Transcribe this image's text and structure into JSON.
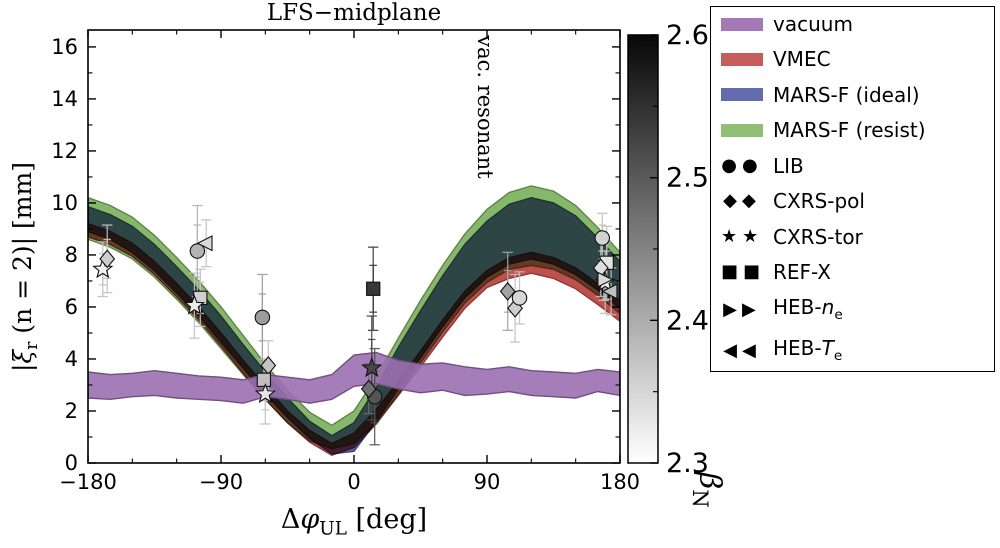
{
  "figure": {
    "title": "LFS−midplane",
    "annotation": "vac. resonant",
    "background": "#ffffff"
  },
  "axes": {
    "xlabel": {
      "p1": "Δ",
      "phi": "φ",
      "sub": "UL",
      "p2": " [deg]"
    },
    "ylabel": {
      "p1": "|",
      "xi": "ξ",
      "sub": "r",
      "p2": " (n = 2)| [mm]"
    },
    "xticks": [
      "−180",
      "−90",
      "0",
      "90",
      "180"
    ],
    "xtick_values": [
      -180,
      -90,
      0,
      90,
      180
    ],
    "yticks": [
      "0",
      "2",
      "4",
      "6",
      "8",
      "10",
      "12",
      "14",
      "16"
    ],
    "ytick_values": [
      0,
      2,
      4,
      6,
      8,
      10,
      12,
      14,
      16
    ]
  },
  "colorbar": {
    "label_main": "β",
    "label_sub": "N",
    "ticks": [
      "2.3",
      "2.4",
      "2.5",
      "2.6"
    ],
    "tick_values": [
      2.3,
      2.4,
      2.5,
      2.6
    ],
    "minor_ticks": [
      2.35,
      2.45,
      2.55
    ],
    "min": 2.3,
    "max": 2.6,
    "top_color": "#070707",
    "bottom_color": "#ffffff"
  },
  "legend": {
    "marker_glyphs": {
      "circle": "●",
      "diamond": "◆",
      "star": "★",
      "square": "■",
      "tri-right": "▶",
      "tri-left": "◀"
    },
    "items": [
      {
        "swatch": "#9b6fb0",
        "pre": "vacuum"
      },
      {
        "swatch": "#c0504d",
        "pre": "VMEC"
      },
      {
        "swatch": "#5560a8",
        "pre": "MARS-F (ideal)"
      },
      {
        "swatch": "#85b868",
        "pre": "MARS-F (resist)"
      },
      {
        "marker": "circle",
        "pre": "LIB"
      },
      {
        "marker": "diamond",
        "pre": "CXRS-pol"
      },
      {
        "marker": "star",
        "pre": "CXRS-tor"
      },
      {
        "marker": "square",
        "pre": "REF-X"
      },
      {
        "marker": "tri-right",
        "pre": "HEB-",
        "it": "n",
        "sub": "e"
      },
      {
        "marker": "tri-left",
        "pre": "HEB-",
        "it": "T",
        "sub": "e"
      }
    ]
  },
  "chart_data": {
    "type": "area",
    "title": "LFS−midplane",
    "xlabel": "Δφ_UL [deg]",
    "ylabel": "|ξ_r (n = 2)| [mm]",
    "xlim": [
      -180,
      180
    ],
    "ylim": [
      0,
      16.65
    ],
    "grid": false,
    "annotation_x": 84,
    "annotation_y": 16.45,
    "x": [
      -180,
      -165,
      -150,
      -135,
      -120,
      -105,
      -90,
      -75,
      -60,
      -45,
      -30,
      -15,
      0,
      15,
      30,
      45,
      60,
      75,
      90,
      105,
      120,
      135,
      150,
      165,
      180
    ],
    "bands": [
      {
        "name": "MARS-F (resist)",
        "color": "#85b868",
        "blend": "normal",
        "opacity": 1,
        "upper": [
          10.2,
          9.9,
          9.45,
          8.75,
          7.9,
          7.0,
          6.0,
          4.9,
          3.8,
          2.8,
          1.95,
          1.45,
          2.0,
          3.3,
          4.8,
          6.25,
          7.6,
          8.8,
          9.75,
          10.4,
          10.65,
          10.45,
          9.9,
          9.05,
          8.1
        ],
        "lower": [
          8.6,
          8.3,
          7.85,
          7.15,
          6.3,
          5.4,
          4.4,
          3.4,
          2.45,
          1.55,
          0.85,
          0.55,
          0.75,
          1.55,
          2.65,
          3.85,
          5.05,
          6.15,
          6.95,
          7.45,
          7.6,
          7.45,
          7.05,
          6.45,
          5.75
        ]
      },
      {
        "name": "MARS-F (ideal)",
        "color": "#5560a8",
        "blend": "multiply",
        "opacity": 1,
        "upper": [
          9.85,
          9.55,
          9.1,
          8.4,
          7.55,
          6.65,
          5.65,
          4.55,
          3.5,
          2.5,
          1.6,
          1.05,
          1.55,
          2.9,
          4.45,
          5.85,
          7.2,
          8.4,
          9.3,
          9.95,
          10.2,
          10.0,
          9.5,
          8.65,
          7.75
        ],
        "lower": [
          8.9,
          8.6,
          8.1,
          7.4,
          6.55,
          5.65,
          4.65,
          3.65,
          2.65,
          1.75,
          0.95,
          0.35,
          0.45,
          1.6,
          2.85,
          4.05,
          5.25,
          6.35,
          7.15,
          7.65,
          7.85,
          7.65,
          7.25,
          6.65,
          5.95
        ]
      },
      {
        "name": "VMEC",
        "color": "#c0504d",
        "blend": "multiply",
        "opacity": 1,
        "upper": [
          9.2,
          8.9,
          8.45,
          7.75,
          6.9,
          6.0,
          5.0,
          3.95,
          2.95,
          2.0,
          1.25,
          0.75,
          1.15,
          2.05,
          3.15,
          4.3,
          5.5,
          6.6,
          7.4,
          7.9,
          8.1,
          7.9,
          7.5,
          6.9,
          6.25
        ],
        "lower": [
          8.7,
          8.4,
          7.95,
          7.25,
          6.4,
          5.5,
          4.5,
          3.45,
          2.45,
          1.55,
          0.8,
          0.3,
          0.6,
          1.5,
          2.6,
          3.7,
          4.85,
          5.95,
          6.75,
          7.1,
          7.3,
          7.1,
          6.7,
          6.1,
          5.45
        ]
      },
      {
        "name": "vacuum",
        "color": "#9b6fb0",
        "blend": "normal",
        "opacity": 0.9,
        "upper": [
          3.5,
          3.4,
          3.45,
          3.55,
          3.45,
          3.35,
          3.3,
          3.2,
          3.4,
          3.3,
          3.2,
          3.4,
          4.15,
          4.25,
          3.95,
          3.8,
          3.85,
          3.7,
          3.6,
          3.7,
          3.55,
          3.5,
          3.45,
          3.6,
          3.5
        ],
        "lower": [
          2.5,
          2.45,
          2.55,
          2.6,
          2.5,
          2.45,
          2.4,
          2.3,
          2.55,
          2.45,
          2.3,
          2.45,
          2.95,
          3.05,
          2.85,
          2.7,
          2.8,
          2.6,
          2.65,
          2.75,
          2.6,
          2.55,
          2.5,
          2.75,
          2.6
        ]
      }
    ],
    "points": [
      {
        "x": -170,
        "y": 7.45,
        "marker": "star",
        "fill": "#f2f2f2",
        "err": 1.05,
        "err2": 0.6
      },
      {
        "x": -167,
        "y": 7.85,
        "marker": "diamond",
        "fill": "#cccccc",
        "err": 1.3,
        "err2": 0.75
      },
      {
        "x": -106,
        "y": 8.15,
        "marker": "circle",
        "fill": "#b3b3b3",
        "err": 1.75,
        "err2": 1.0
      },
      {
        "x": -100,
        "y": 8.45,
        "marker": "tri-left",
        "fill": "#d9d9d9",
        "err": 0.9
      },
      {
        "x": -104,
        "y": 6.35,
        "marker": "square",
        "fill": "#d0d0d0",
        "err": 1.1,
        "err2": 0.6
      },
      {
        "x": -108,
        "y": 6.05,
        "marker": "star",
        "fill": "#ebebeb",
        "err": 1.25
      },
      {
        "x": -62,
        "y": 5.6,
        "marker": "circle",
        "fill": "#9c9c9c",
        "err": 1.65,
        "err2": 0.9
      },
      {
        "x": -58,
        "y": 3.75,
        "marker": "diamond",
        "fill": "#c4c4c4",
        "err": 0.95
      },
      {
        "x": -61,
        "y": 3.2,
        "marker": "square",
        "fill": "#c0c0c0",
        "err": 0.8
      },
      {
        "x": -60,
        "y": 2.65,
        "marker": "star",
        "fill": "#e6e6e6",
        "err": 1.15,
        "err2": 0.6
      },
      {
        "x": 13,
        "y": 6.7,
        "marker": "square",
        "fill": "#383838",
        "err": 1.6,
        "err2": 0.9
      },
      {
        "x": 12,
        "y": 3.65,
        "marker": "star",
        "fill": "#484848",
        "err": 2.0,
        "err2": 1.1
      },
      {
        "x": 14,
        "y": 2.55,
        "marker": "circle",
        "fill": "#545454",
        "err": 1.85,
        "err2": 1.0
      },
      {
        "x": 10,
        "y": 2.85,
        "marker": "diamond",
        "fill": "#6e6e6e",
        "err": 0.95
      },
      {
        "x": 104,
        "y": 6.6,
        "marker": "diamond",
        "fill": "#a3a3a3",
        "err": 1.5,
        "err2": 0.8
      },
      {
        "x": 109,
        "y": 5.95,
        "marker": "diamond",
        "fill": "#cfcfcf",
        "err": 1.3
      },
      {
        "x": 112,
        "y": 6.35,
        "marker": "circle",
        "fill": "#d6d6d6",
        "err": 1.0
      },
      {
        "x": 168,
        "y": 8.65,
        "marker": "circle",
        "fill": "#d2d2d2",
        "err": 0.95,
        "err2": 0.5
      },
      {
        "x": 171,
        "y": 7.7,
        "marker": "square",
        "fill": "#e3e3e3",
        "err": 1.4,
        "err2": 0.8
      },
      {
        "x": 167,
        "y": 7.5,
        "marker": "diamond",
        "fill": "#dedede",
        "err": 1.1
      },
      {
        "x": 170,
        "y": 6.95,
        "marker": "star",
        "fill": "#f0f0f0",
        "err": 1.2,
        "err2": 0.65
      },
      {
        "x": 174,
        "y": 6.6,
        "marker": "tri-left",
        "fill": "#bfbfbf",
        "err": 0.9
      },
      {
        "x": 169,
        "y": 7.05,
        "marker": "tri-right",
        "fill": "#d8d8d8",
        "err": 0.8
      }
    ]
  }
}
